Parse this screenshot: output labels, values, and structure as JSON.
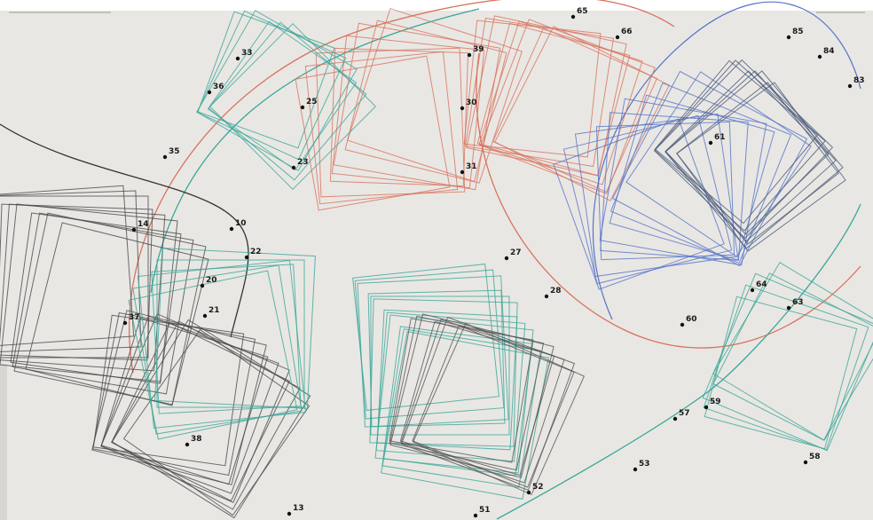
{
  "labels": [
    "33",
    "36",
    "35",
    "25",
    "23",
    "39",
    "30",
    "31",
    "27",
    "28",
    "65",
    "66",
    "85",
    "84",
    "83",
    "61",
    "64",
    "60",
    "63",
    "59",
    "57",
    "53",
    "58",
    "51",
    "52",
    "38",
    "37",
    "13",
    "21",
    "22",
    "10",
    "14",
    "20"
  ]
}
